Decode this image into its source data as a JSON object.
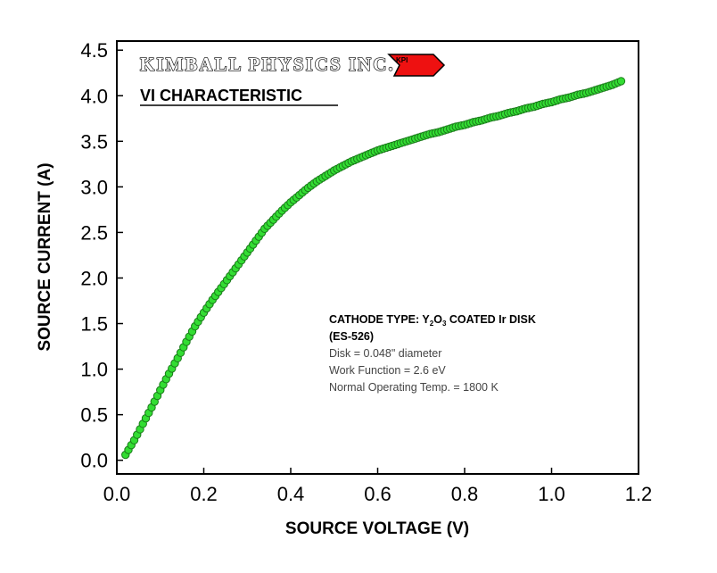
{
  "chart_data": {
    "type": "scatter",
    "xlabel": "SOURCE VOLTAGE (V)",
    "ylabel": "SOURCE CURRENT (A)",
    "xlim": [
      0,
      1.2
    ],
    "ylim": [
      -0.15,
      4.6
    ],
    "x_ticks": [
      "0.0",
      "0.2",
      "0.4",
      "0.6",
      "0.8",
      "1.0",
      "1.2"
    ],
    "y_ticks": [
      "0.0",
      "0.5",
      "1.0",
      "1.5",
      "2.0",
      "2.5",
      "3.0",
      "3.5",
      "4.0",
      "4.5"
    ],
    "grid": false,
    "marker_color": "#33dd33",
    "marker_edge_color": "#1a7a1a",
    "series": [
      {
        "x": [
          0.02,
          0.04,
          0.06,
          0.08,
          0.1,
          0.12,
          0.14,
          0.16,
          0.18,
          0.2,
          0.22,
          0.24,
          0.26,
          0.28,
          0.3,
          0.32,
          0.34,
          0.36,
          0.38,
          0.4,
          0.42,
          0.44,
          0.46,
          0.48,
          0.5,
          0.52,
          0.54,
          0.56,
          0.58,
          0.6,
          0.62,
          0.64,
          0.66,
          0.68,
          0.7,
          0.72,
          0.74,
          0.76,
          0.78,
          0.8,
          0.82,
          0.84,
          0.86,
          0.88,
          0.9,
          0.92,
          0.94,
          0.96,
          0.98,
          1.0,
          1.02,
          1.04,
          1.06,
          1.08,
          1.1,
          1.12,
          1.14,
          1.16
        ],
        "y": [
          0.06,
          0.22,
          0.4,
          0.58,
          0.77,
          0.95,
          1.12,
          1.3,
          1.47,
          1.62,
          1.76,
          1.89,
          2.02,
          2.15,
          2.28,
          2.41,
          2.54,
          2.64,
          2.74,
          2.83,
          2.91,
          2.99,
          3.06,
          3.12,
          3.18,
          3.23,
          3.28,
          3.32,
          3.36,
          3.4,
          3.43,
          3.46,
          3.49,
          3.52,
          3.55,
          3.58,
          3.6,
          3.63,
          3.66,
          3.68,
          3.71,
          3.73,
          3.76,
          3.78,
          3.81,
          3.83,
          3.86,
          3.88,
          3.91,
          3.93,
          3.96,
          3.98,
          4.01,
          4.03,
          4.06,
          4.09,
          4.12,
          4.16
        ]
      }
    ]
  },
  "logo": {
    "brand_text": "KIMBALL PHYSICS INC.",
    "badge_text": "KPI",
    "badge_color": "#ee1111"
  },
  "chart_title": "VI CHARACTERISTIC",
  "annotation": {
    "line1_prefix": "CATHODE TYPE: Y",
    "sub1": "2",
    "mid": "O",
    "sub2": "3",
    "line1_suffix": " COATED Ir DISK",
    "line2": "(ES-526)",
    "line3": "Disk = 0.048\" diameter",
    "line4": "Work Function = 2.6 eV",
    "line5": "Normal Operating Temp. = 1800 K"
  }
}
